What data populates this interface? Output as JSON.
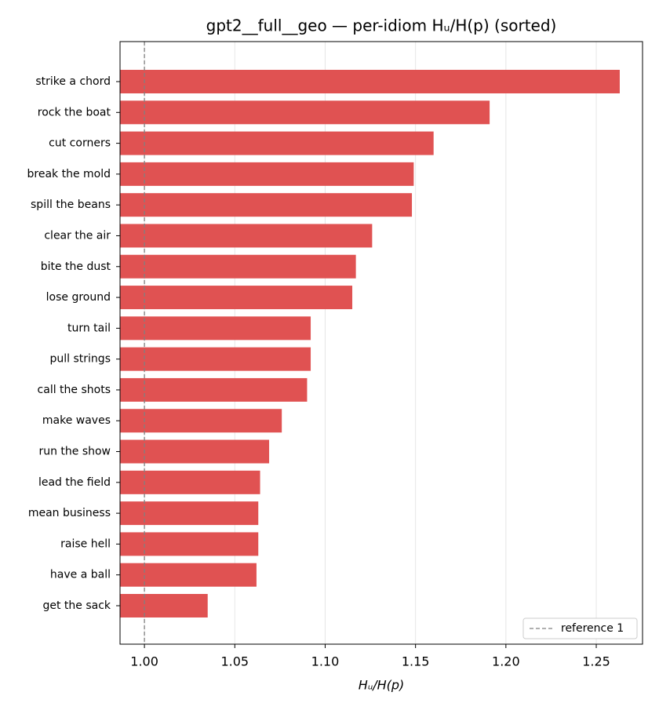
{
  "chart_data": {
    "type": "barh",
    "title": "gpt2__full__geo — per-idiom Hᵤ/H(p) (sorted)",
    "x_label": "Hᵤ/H(p)",
    "categories": [
      "strike a chord",
      "rock the boat",
      "cut corners",
      "break the mold",
      "spill the beans",
      "clear the air",
      "bite the dust",
      "lose ground",
      "turn tail",
      "pull strings",
      "call the shots",
      "make waves",
      "run the show",
      "lead the field",
      "mean business",
      "raise hell",
      "have a ball",
      "get the sack"
    ],
    "values": [
      1.263,
      1.191,
      1.16,
      1.149,
      1.148,
      1.126,
      1.117,
      1.115,
      1.092,
      1.092,
      1.09,
      1.076,
      1.069,
      1.064,
      1.063,
      1.063,
      1.062,
      1.035
    ],
    "color": "#e05252",
    "xlim": [
      0.9865,
      1.2756
    ],
    "xticks": [
      {
        "value": 1.0,
        "label": "1.00"
      },
      {
        "value": 1.05,
        "label": "1.05"
      },
      {
        "value": 1.1,
        "label": "1.10"
      },
      {
        "value": 1.15,
        "label": "1.15"
      },
      {
        "value": 1.2,
        "label": "1.20"
      },
      {
        "value": 1.25,
        "label": "1.25"
      }
    ],
    "grid": true,
    "reference": {
      "value": 1,
      "label": "reference 1",
      "color": "#808080"
    },
    "legend": "lower right"
  }
}
